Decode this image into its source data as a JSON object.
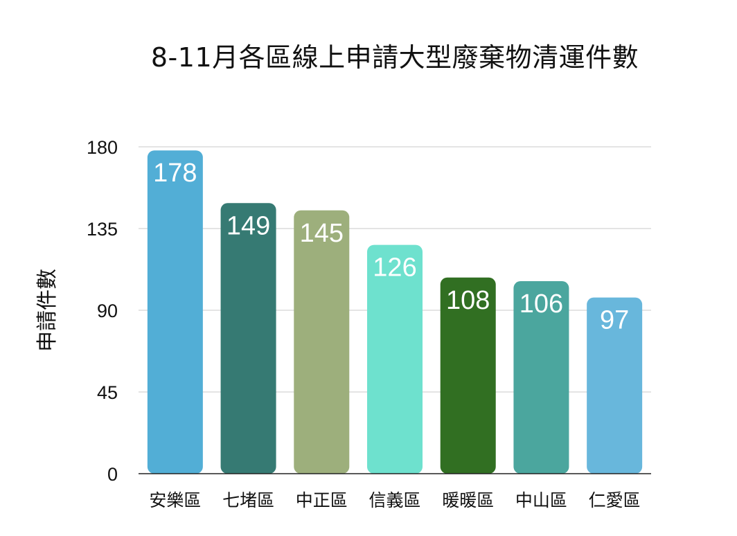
{
  "chart_data": {
    "type": "bar",
    "title": "8-11月各區線上申請大型廢棄物清運件數",
    "xlabel": "",
    "ylabel": "申請件數",
    "categories": [
      "安樂區",
      "七堵區",
      "中正區",
      "信義區",
      "暖暖區",
      "中山區",
      "仁愛區"
    ],
    "values": [
      178,
      149,
      145,
      126,
      108,
      106,
      97
    ],
    "data_labels": [
      "178",
      "149",
      "145",
      "126",
      "108",
      "106",
      "97"
    ],
    "ylim": [
      0,
      180
    ],
    "yticks": [
      0,
      45,
      90,
      135,
      180
    ],
    "ytick_labels": [
      "0",
      "45",
      "90",
      "135",
      "180"
    ],
    "colors": [
      "#52aed6",
      "#367a73",
      "#9daf7c",
      "#6ee1ce",
      "#316f22",
      "#4ba69e",
      "#68b7dc"
    ],
    "grid": true,
    "legend": "none"
  }
}
